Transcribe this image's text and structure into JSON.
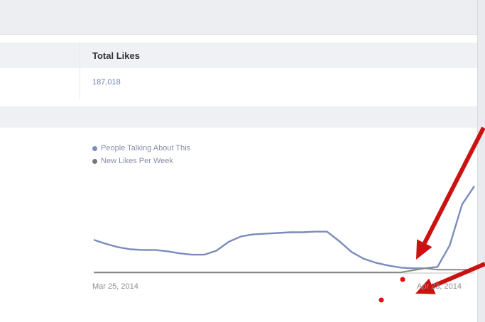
{
  "panel": {
    "title": "Total Likes",
    "total_likes": "187,018"
  },
  "legend": [
    {
      "label": "People Talking About This",
      "color": "#7b8bbb"
    },
    {
      "label": "New Likes Per Week",
      "color": "#777777"
    }
  ],
  "colors": {
    "talking_line": "#7b8bbb",
    "likes_line": "#8a8a8a",
    "annotation_arrow": "#cc1111",
    "annotation_dot": "#dd1111"
  },
  "chart_data": {
    "type": "line",
    "x_labels": [
      "Mar 25, 2014",
      "Apr 23, 2014"
    ],
    "series": [
      {
        "name": "People Talking About This",
        "values": [
          48,
          42,
          37,
          34,
          33,
          33,
          31,
          28,
          26,
          26,
          32,
          45,
          53,
          56,
          57,
          58,
          59,
          59,
          60,
          60,
          46,
          30,
          20,
          14,
          10,
          7,
          6,
          6,
          8,
          40,
          100,
          127
        ]
      },
      {
        "name": "New Likes Per Week",
        "values": [
          0,
          0,
          0,
          0,
          0,
          0,
          0,
          0,
          0,
          0,
          0,
          0,
          0,
          0,
          0,
          0,
          0,
          0,
          0,
          0,
          0,
          0,
          0,
          0,
          0,
          0,
          3,
          6,
          4,
          4,
          4,
          4
        ]
      }
    ],
    "ylim": [
      0,
      140
    ],
    "grid": false
  },
  "annotations": {
    "arrow_count": 2,
    "marker_count": 2
  }
}
